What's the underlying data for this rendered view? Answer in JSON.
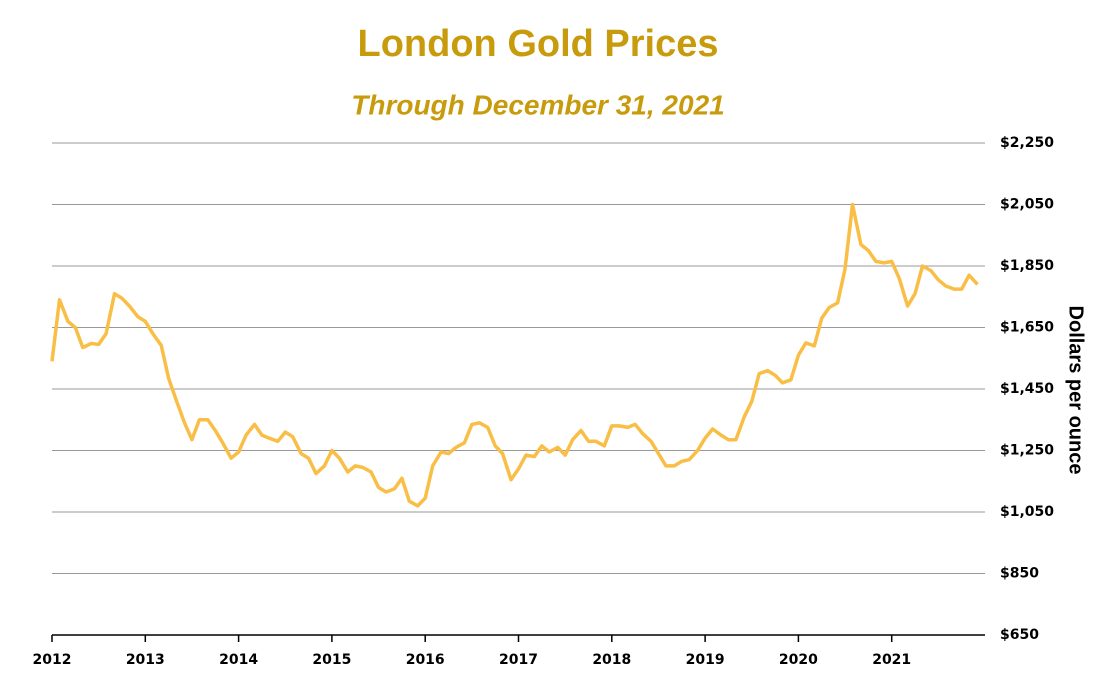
{
  "chart_data": {
    "type": "line",
    "title": "London Gold Prices",
    "subtitle": "Through December 31, 2021",
    "y_axis_label": "Dollars per ounce",
    "color": "#F9BE45",
    "grid": true,
    "xlim": [
      2012,
      2022
    ],
    "xticks": [
      2012,
      2013,
      2014,
      2015,
      2016,
      2017,
      2018,
      2019,
      2020,
      2021
    ],
    "ylim": [
      650,
      2250
    ],
    "yticks": [
      {
        "value": 650,
        "label": "$650"
      },
      {
        "value": 850,
        "label": "$850"
      },
      {
        "value": 1050,
        "label": "$1,050"
      },
      {
        "value": 1250,
        "label": "$1,250"
      },
      {
        "value": 1450,
        "label": "$1,450"
      },
      {
        "value": 1650,
        "label": "$1,650"
      },
      {
        "value": 1850,
        "label": "$1,850"
      },
      {
        "value": 2050,
        "label": "$2,050"
      },
      {
        "value": 2250,
        "label": "$2,250"
      }
    ],
    "x": [
      2012.0,
      2012.08,
      2012.17,
      2012.25,
      2012.33,
      2012.42,
      2012.5,
      2012.58,
      2012.67,
      2012.75,
      2012.83,
      2012.92,
      2013.0,
      2013.08,
      2013.17,
      2013.25,
      2013.33,
      2013.42,
      2013.5,
      2013.58,
      2013.67,
      2013.75,
      2013.83,
      2013.92,
      2014.0,
      2014.08,
      2014.17,
      2014.25,
      2014.33,
      2014.42,
      2014.5,
      2014.58,
      2014.67,
      2014.75,
      2014.83,
      2014.92,
      2015.0,
      2015.08,
      2015.17,
      2015.25,
      2015.33,
      2015.42,
      2015.5,
      2015.58,
      2015.67,
      2015.75,
      2015.83,
      2015.92,
      2016.0,
      2016.08,
      2016.17,
      2016.25,
      2016.33,
      2016.42,
      2016.5,
      2016.58,
      2016.67,
      2016.75,
      2016.83,
      2016.92,
      2017.0,
      2017.08,
      2017.17,
      2017.25,
      2017.33,
      2017.42,
      2017.5,
      2017.58,
      2017.67,
      2017.75,
      2017.83,
      2017.92,
      2018.0,
      2018.08,
      2018.17,
      2018.25,
      2018.33,
      2018.42,
      2018.5,
      2018.58,
      2018.67,
      2018.75,
      2018.83,
      2018.92,
      2019.0,
      2019.08,
      2019.17,
      2019.25,
      2019.33,
      2019.42,
      2019.5,
      2019.58,
      2019.67,
      2019.75,
      2019.83,
      2019.92,
      2020.0,
      2020.08,
      2020.17,
      2020.25,
      2020.33,
      2020.42,
      2020.5,
      2020.58,
      2020.67,
      2020.75,
      2020.83,
      2020.92,
      2021.0,
      2021.08,
      2021.17,
      2021.25,
      2021.33,
      2021.42,
      2021.5,
      2021.58,
      2021.67,
      2021.75,
      2021.83,
      2021.92
    ],
    "values": [
      1540,
      1740,
      1670,
      1650,
      1585,
      1598,
      1595,
      1630,
      1760,
      1745,
      1720,
      1685,
      1670,
      1630,
      1592,
      1485,
      1415,
      1340,
      1285,
      1350,
      1350,
      1315,
      1275,
      1225,
      1245,
      1300,
      1335,
      1300,
      1290,
      1280,
      1310,
      1295,
      1240,
      1225,
      1175,
      1200,
      1250,
      1225,
      1180,
      1200,
      1195,
      1180,
      1130,
      1115,
      1125,
      1160,
      1085,
      1070,
      1095,
      1200,
      1245,
      1240,
      1260,
      1275,
      1335,
      1340,
      1325,
      1265,
      1240,
      1155,
      1190,
      1235,
      1230,
      1265,
      1245,
      1260,
      1235,
      1285,
      1315,
      1280,
      1280,
      1265,
      1330,
      1330,
      1325,
      1335,
      1305,
      1280,
      1240,
      1200,
      1200,
      1215,
      1220,
      1250,
      1290,
      1320,
      1300,
      1285,
      1285,
      1360,
      1410,
      1500,
      1510,
      1495,
      1470,
      1480,
      1560,
      1600,
      1590,
      1680,
      1715,
      1730,
      1840,
      2050,
      1920,
      1900,
      1865,
      1860,
      1865,
      1810,
      1720,
      1760,
      1850,
      1835,
      1805,
      1785,
      1775,
      1775,
      1820,
      1790
    ]
  }
}
